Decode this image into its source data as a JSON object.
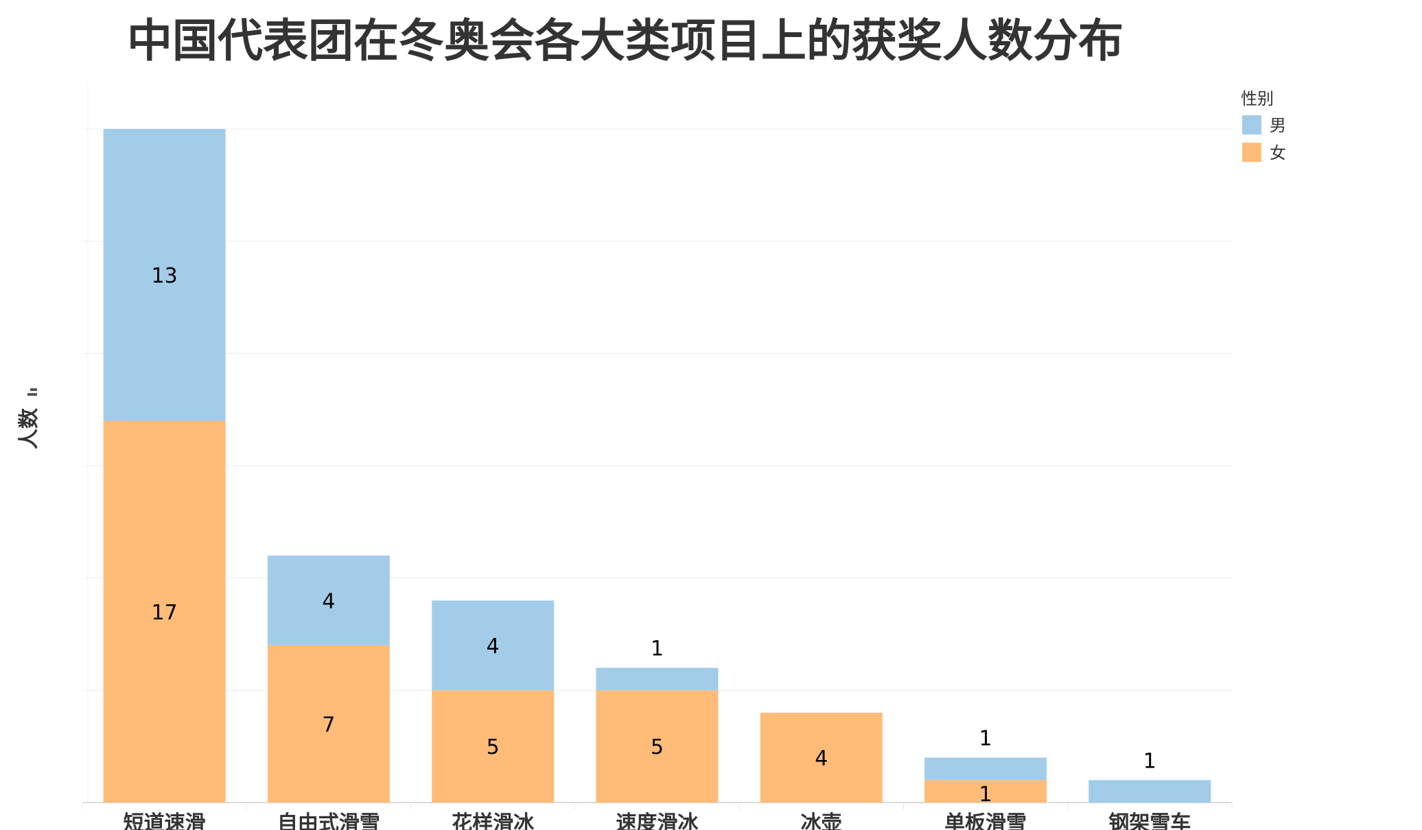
{
  "chart_data": {
    "type": "bar",
    "stacked": true,
    "title": "中国代表团在冬奥会各大类项目上的获奖人数分布",
    "xlabel": "",
    "ylabel": "人数",
    "ylim": [
      0,
      30
    ],
    "grid": true,
    "y_tick_labels_shown": false,
    "legend_title": "性别",
    "legend_position": "top-right",
    "categories": [
      "短道速滑",
      "自由式滑雪",
      "花样滑冰",
      "速度滑冰",
      "冰壶",
      "单板滑雪",
      "钢架雪车"
    ],
    "series": [
      {
        "name": "女",
        "color": "#FFBC79",
        "values": [
          17,
          7,
          5,
          5,
          4,
          1,
          0
        ]
      },
      {
        "name": "男",
        "color": "#A3CCE9",
        "values": [
          13,
          4,
          4,
          1,
          0,
          1,
          1
        ]
      }
    ]
  }
}
